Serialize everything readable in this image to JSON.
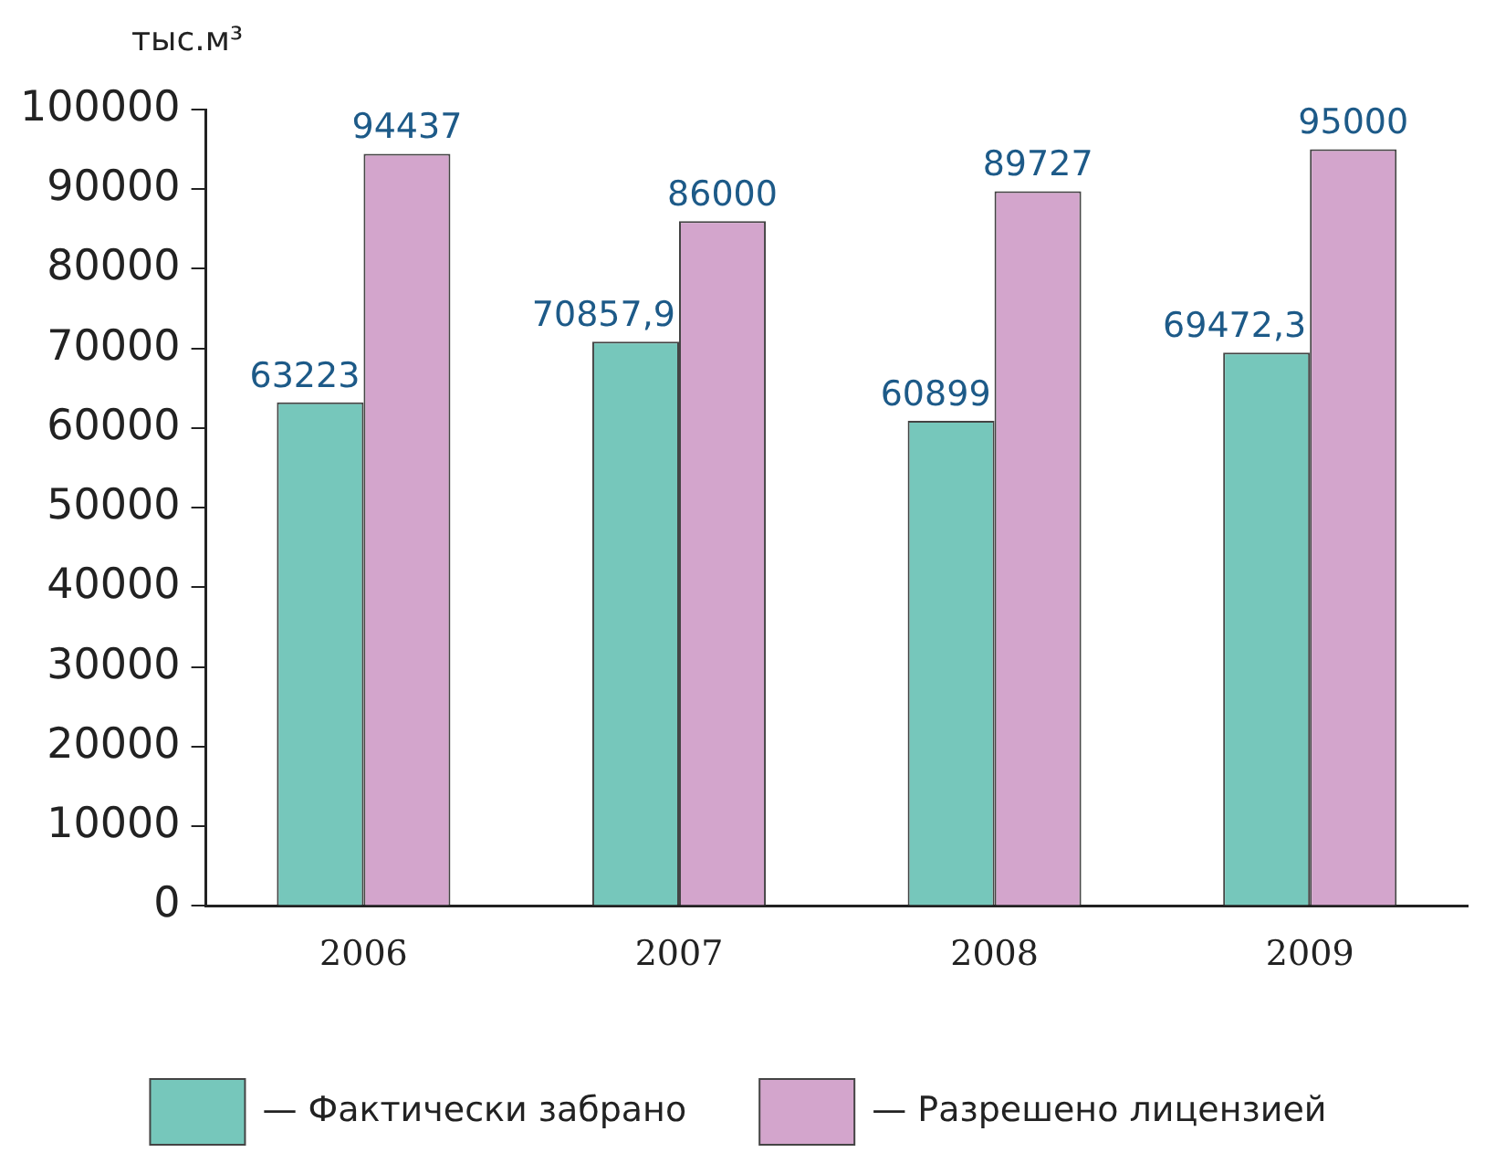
{
  "chart_data": {
    "type": "bar",
    "ylabel": "тыс.м³",
    "categories": [
      "2006",
      "2007",
      "2008",
      "2009"
    ],
    "series": [
      {
        "name": "— Фактически забрано",
        "color": "#76c7bb",
        "values": [
          63223,
          70857.9,
          60899,
          69472.3
        ],
        "value_labels": [
          "63223",
          "70857,9",
          "60899",
          "69472,3"
        ]
      },
      {
        "name": "— Разрешено лицензией",
        "color": "#d3a5cc",
        "values": [
          94437,
          86000,
          89727,
          95000
        ],
        "value_labels": [
          "94437",
          "86000",
          "89727",
          "95000"
        ]
      }
    ],
    "ylim": [
      0,
      100000
    ],
    "yticks": [
      0,
      10000,
      20000,
      30000,
      40000,
      50000,
      60000,
      70000,
      80000,
      90000,
      100000
    ],
    "grid": false,
    "legend": "bottom"
  }
}
